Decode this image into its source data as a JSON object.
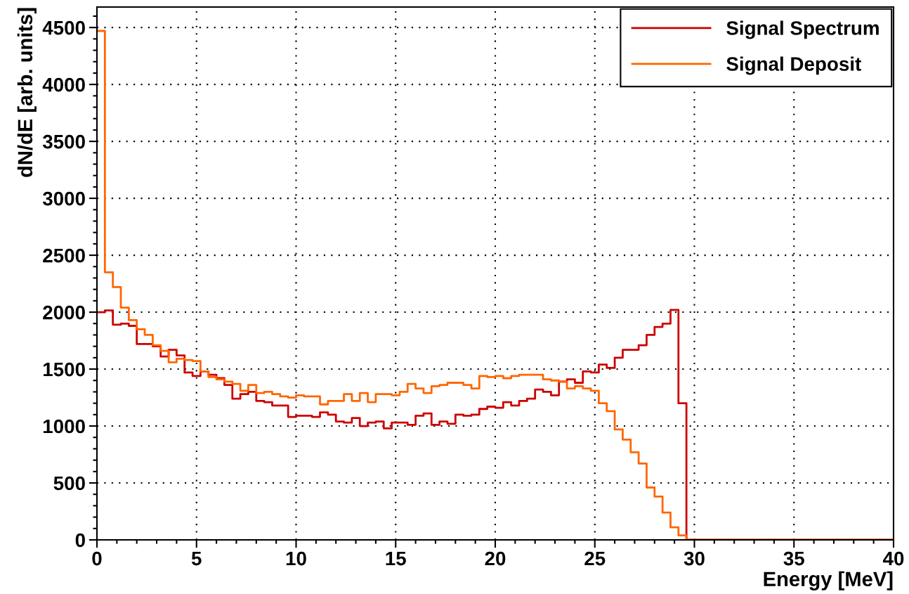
{
  "chart_data": {
    "type": "histogram",
    "xlabel": "Energy [MeV]",
    "ylabel": "dN/dE [arb. units]",
    "bins": [
      0,
      0.4,
      0.8,
      1.2,
      1.6,
      2,
      2.4,
      2.8,
      3.2,
      3.6,
      4,
      4.4,
      4.8,
      5.2,
      5.6,
      6,
      6.4,
      6.8,
      7.2,
      7.6,
      8,
      8.4,
      8.8,
      9.2,
      9.6,
      10,
      10.4,
      10.8,
      11.2,
      11.6,
      12,
      12.4,
      12.8,
      13.2,
      13.6,
      14,
      14.4,
      14.8,
      15.2,
      15.6,
      16,
      16.4,
      16.8,
      17.2,
      17.6,
      18,
      18.4,
      18.8,
      19.2,
      19.6,
      20,
      20.4,
      20.8,
      21.2,
      21.6,
      22,
      22.4,
      22.8,
      23.2,
      23.6,
      24,
      24.4,
      24.8,
      25.2,
      25.6,
      26,
      26.4,
      26.8,
      27.2,
      27.6,
      28,
      28.4,
      28.8,
      29.2,
      29.6,
      30,
      30.4,
      30.8,
      31.2,
      31.6,
      32,
      32.4,
      32.8,
      33.2,
      33.6,
      34,
      34.4,
      34.8,
      35.2,
      35.6,
      36,
      36.4,
      36.8,
      37.2,
      37.6,
      38,
      38.4,
      38.8,
      39.2,
      39.6,
      40
    ],
    "series": [
      {
        "name": "Signal Spectrum",
        "color": "#cc0000",
        "values": [
          2000,
          2015,
          1890,
          1900,
          1880,
          1720,
          1720,
          1700,
          1610,
          1670,
          1620,
          1470,
          1440,
          1480,
          1450,
          1420,
          1360,
          1240,
          1280,
          1300,
          1220,
          1210,
          1180,
          1180,
          1080,
          1090,
          1090,
          1080,
          1120,
          1100,
          1040,
          1030,
          1070,
          1000,
          1030,
          1040,
          980,
          1030,
          1030,
          1010,
          1090,
          1110,
          1010,
          1040,
          1020,
          1100,
          1090,
          1100,
          1150,
          1170,
          1160,
          1210,
          1180,
          1220,
          1240,
          1320,
          1300,
          1270,
          1390,
          1410,
          1380,
          1480,
          1470,
          1540,
          1510,
          1600,
          1670,
          1670,
          1710,
          1800,
          1870,
          1900,
          2020,
          1200,
          0,
          0,
          0,
          0,
          0,
          0,
          0,
          0,
          0,
          0,
          0,
          0,
          0,
          0,
          0,
          0,
          0,
          0,
          0,
          0,
          0,
          0,
          0,
          0,
          0,
          0
        ]
      },
      {
        "name": "Signal Deposit",
        "color": "#ff6600",
        "values": [
          4470,
          2350,
          2220,
          2040,
          1930,
          1850,
          1800,
          1710,
          1660,
          1560,
          1590,
          1580,
          1570,
          1480,
          1430,
          1410,
          1390,
          1370,
          1310,
          1360,
          1290,
          1300,
          1280,
          1260,
          1250,
          1270,
          1260,
          1260,
          1190,
          1220,
          1220,
          1280,
          1220,
          1290,
          1210,
          1280,
          1280,
          1270,
          1300,
          1370,
          1330,
          1290,
          1350,
          1360,
          1380,
          1380,
          1360,
          1330,
          1440,
          1430,
          1440,
          1420,
          1440,
          1450,
          1450,
          1450,
          1410,
          1400,
          1390,
          1330,
          1350,
          1330,
          1310,
          1200,
          1130,
          970,
          880,
          770,
          670,
          460,
          380,
          240,
          110,
          40,
          0,
          0,
          0,
          0,
          0,
          0,
          0,
          0,
          0,
          0,
          0,
          0,
          0,
          0,
          0,
          0,
          0,
          0,
          0,
          0,
          0,
          0,
          0,
          0,
          0,
          0
        ]
      }
    ],
    "xlim": [
      0,
      40
    ],
    "xticks": [
      0,
      5,
      10,
      15,
      20,
      25,
      30,
      35,
      40
    ],
    "ylim": [
      0,
      4680
    ],
    "yticks": [
      0,
      500,
      1000,
      1500,
      2000,
      2500,
      3000,
      3500,
      4000,
      4500
    ],
    "grid": true,
    "legend": "top right"
  }
}
